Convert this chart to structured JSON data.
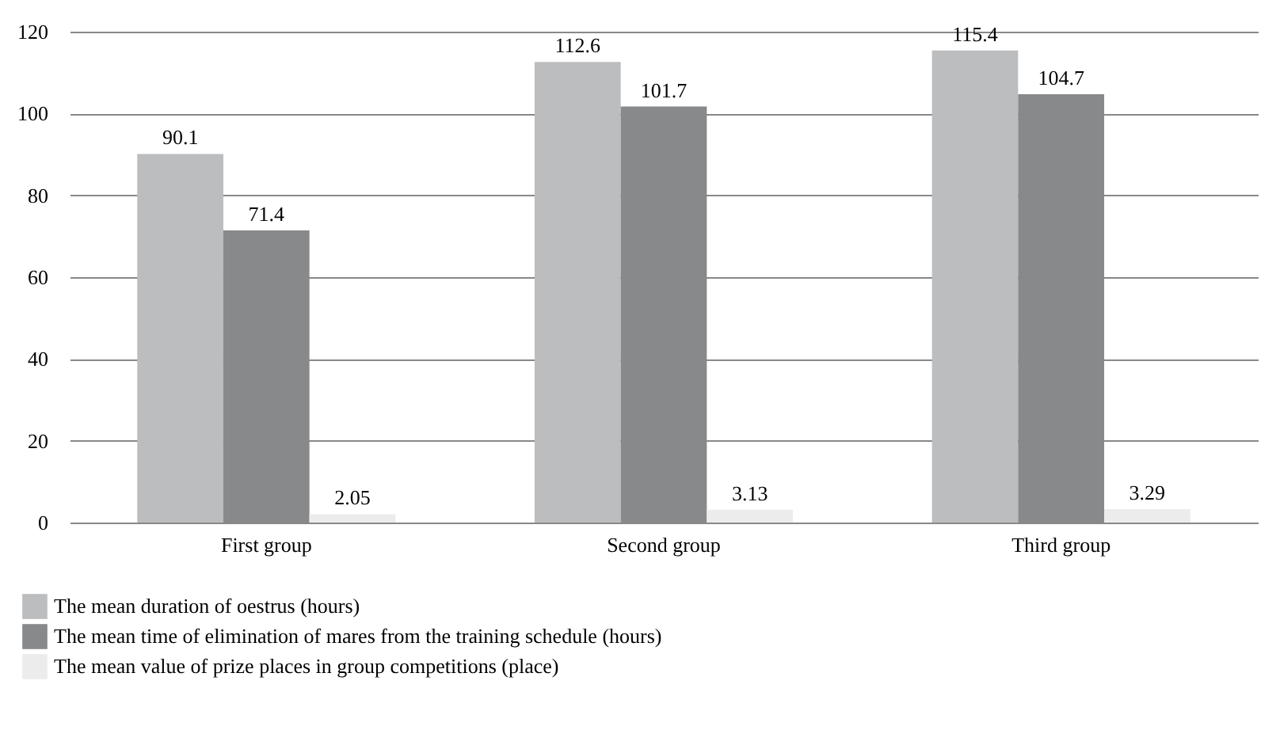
{
  "chart_data": {
    "type": "bar",
    "categories": [
      "First group",
      "Second group",
      "Third group"
    ],
    "series": [
      {
        "name": "The mean duration of oestrus (hours)",
        "color": "#bcbdbf",
        "values": [
          90.1,
          112.6,
          115.4
        ]
      },
      {
        "name": "The mean time of elimination of mares from the training schedule (hours)",
        "color": "#88898b",
        "values": [
          71.4,
          101.7,
          104.7
        ]
      },
      {
        "name": "The mean value of prize places in group competitions (place)",
        "color": "#ebeceb",
        "values": [
          2.05,
          3.13,
          3.29
        ]
      }
    ],
    "ylim": [
      0,
      120
    ],
    "yticks": [
      0,
      20,
      40,
      60,
      80,
      100,
      120
    ],
    "grid": "y",
    "legend": "bottom left",
    "data_labels": true
  }
}
